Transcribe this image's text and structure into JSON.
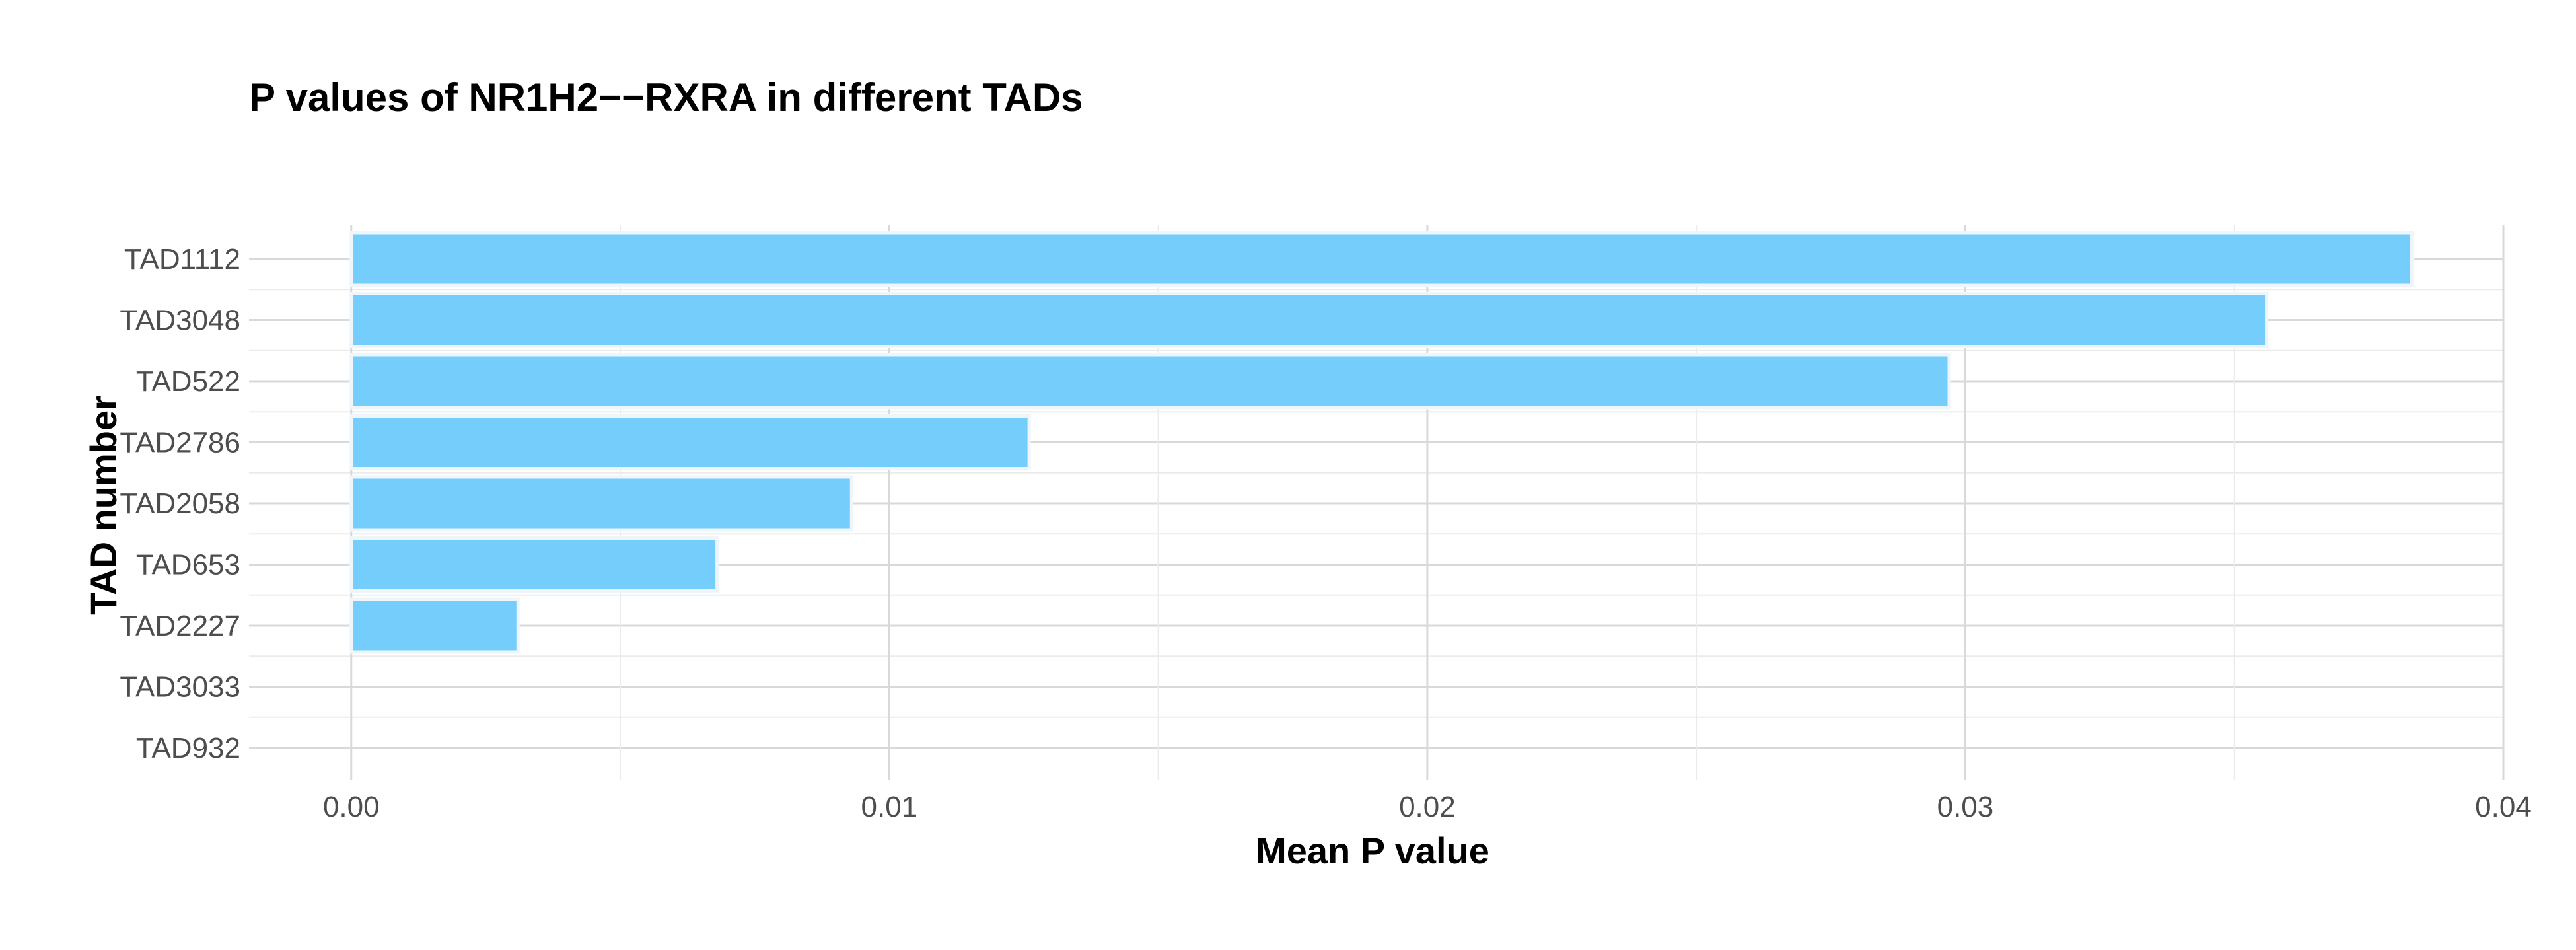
{
  "chart_data": {
    "type": "bar",
    "orientation": "horizontal",
    "title": "P values of NR1H2−−RXRA in different TADs",
    "xlabel": "Mean P value",
    "ylabel": "TAD number",
    "categories": [
      "TAD1112",
      "TAD3048",
      "TAD522",
      "TAD2786",
      "TAD2058",
      "TAD653",
      "TAD2227",
      "TAD3033",
      "TAD932"
    ],
    "values": [
      0.0383,
      0.0356,
      0.0297,
      0.0126,
      0.0093,
      0.0068,
      0.0031,
      0.0,
      0.0
    ],
    "xlim": [
      -0.0019,
      0.04
    ],
    "xticks": [
      0.0,
      0.01,
      0.02,
      0.03,
      0.04
    ],
    "xtick_labels": [
      "0.00",
      "0.01",
      "0.02",
      "0.03",
      "0.04"
    ],
    "grid": true,
    "bar_color": "#75cdfb",
    "legend": "none"
  }
}
